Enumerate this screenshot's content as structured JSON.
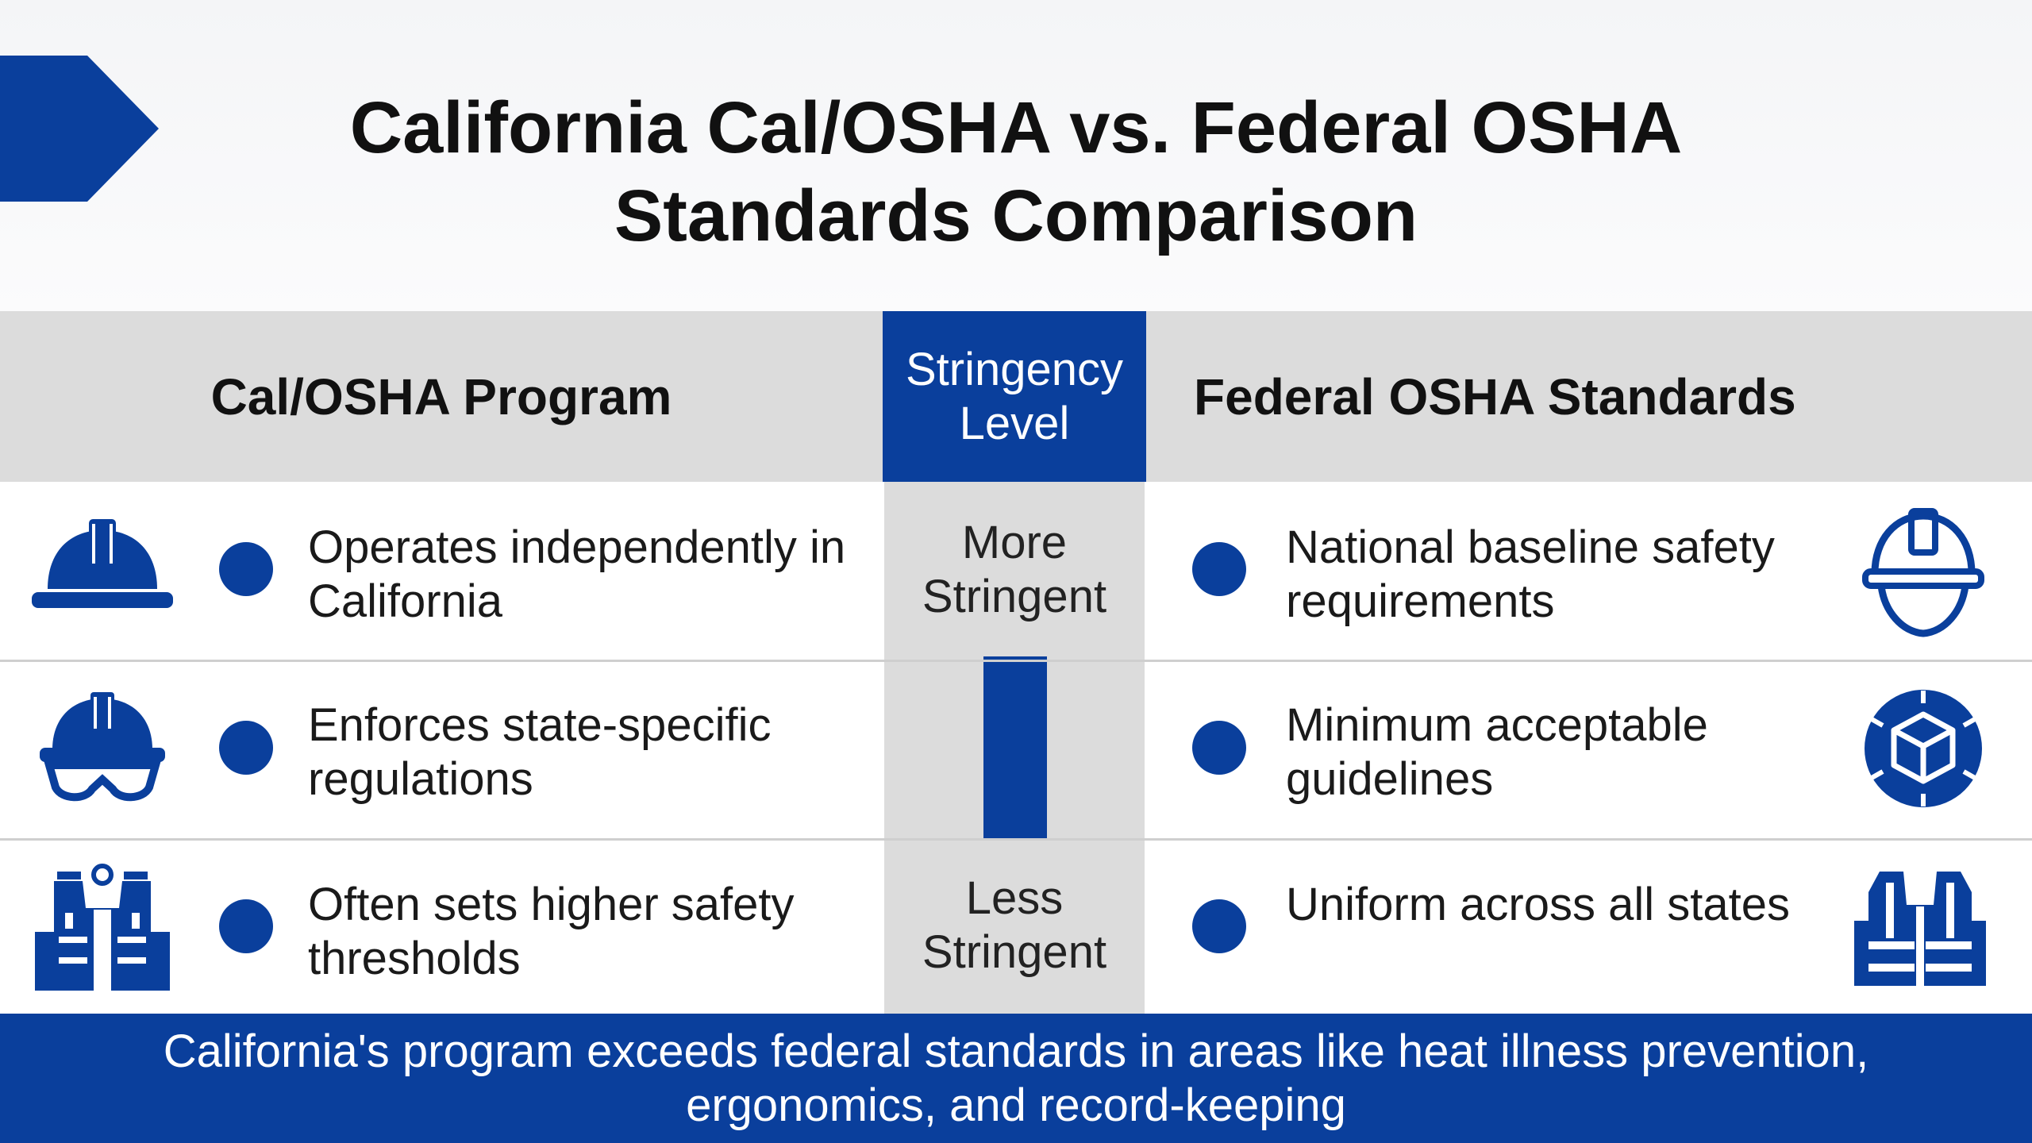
{
  "title": "California Cal/OSHA vs. Federal OSHA Standards Comparison",
  "headers": {
    "left": "Cal/OSHA Program",
    "center": "Stringency Level",
    "right": "Federal OSHA Standards"
  },
  "stringency": {
    "top": "More Stringent",
    "bottom": "Less Stringent"
  },
  "rows": [
    {
      "left_icon": "hard-hat-icon",
      "left_text": "Operates independently in California",
      "right_text": "National baseline safety requirements",
      "right_icon": "helmet-outline-icon"
    },
    {
      "left_icon": "helmet-goggles-icon",
      "left_text": "Enforces state-specific regulations",
      "right_text": "Minimum acceptable guidelines",
      "right_icon": "cube-network-icon"
    },
    {
      "left_icon": "harness-vest-icon",
      "left_text": "Often sets higher safety thresholds",
      "right_text": "Uniform across all states",
      "right_icon": "safety-vest-icon"
    }
  ],
  "footer": "California's program exceeds federal standards in areas like heat illness prevention, ergonomics, and record-keeping",
  "colors": {
    "accent": "#0a3f9c",
    "header_gray": "#dcdcdc",
    "text": "#111111"
  }
}
